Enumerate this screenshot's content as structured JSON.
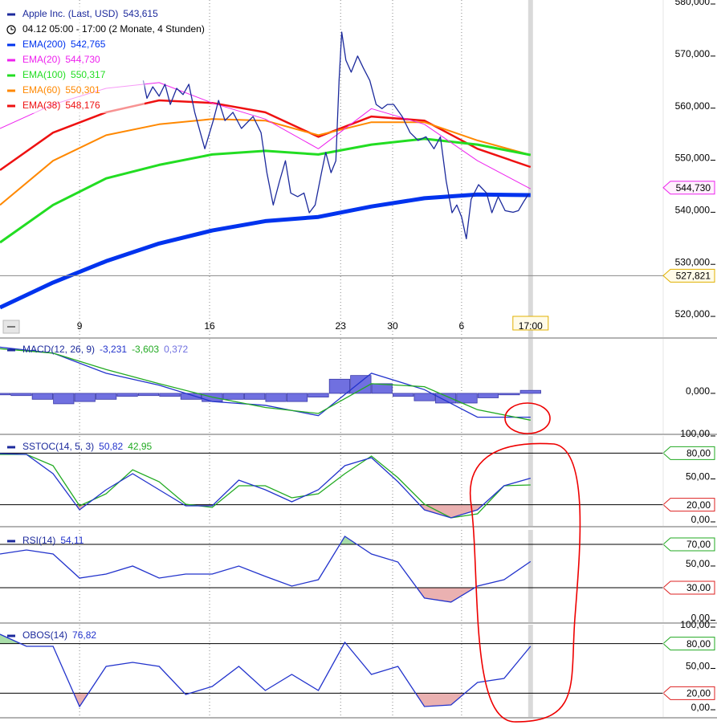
{
  "chart_data": [
    {
      "type": "line",
      "subtitle": "04.12 05:00 - 17:00 (2 Monate, 4 Stunden)",
      "xlim": [
        0,
        125
      ],
      "xticks": [
        {
          "value": 15,
          "label": "9"
        },
        {
          "value": 39.5,
          "label": "16"
        },
        {
          "value": 64.2,
          "label": "23"
        },
        {
          "value": 74,
          "label": "30"
        },
        {
          "value": 87,
          "label": "6"
        },
        {
          "value": 100,
          "label": "17:00"
        }
      ],
      "ylim": [
        516,
        580
      ],
      "yticks": [
        {
          "value": 520,
          "label": "520,000"
        },
        {
          "value": 530,
          "label": "530,000"
        },
        {
          "value": 540,
          "label": "540,000"
        },
        {
          "value": 550,
          "label": "550,000"
        },
        {
          "value": 560,
          "label": "560,000"
        },
        {
          "value": 570,
          "label": "570,000"
        },
        {
          "value": 580,
          "label": "580,000"
        }
      ],
      "x": [
        0,
        10,
        20,
        30,
        40,
        50,
        60,
        70,
        80,
        90,
        100
      ],
      "series": [
        {
          "name": "Apple Inc. (Last, USD)",
          "last": "543,615",
          "color": "#1c2a9c",
          "x": [
            27.0,
            27.7,
            28.8,
            30.0,
            31.1,
            32.1,
            33.3,
            34.5,
            35.6,
            36.7,
            38.6,
            40.2,
            41.2,
            42.4,
            43.9,
            45.5,
            47.7,
            49.2,
            50.3,
            51.5,
            52.7,
            53.8,
            54.8,
            56.1,
            57.3,
            58.3,
            59.4,
            60.6,
            61.4,
            62.4,
            63.3,
            63.9,
            64.4,
            65.2,
            66.2,
            67.4,
            68.5,
            69.7,
            70.9,
            72.0,
            73.0,
            74.2,
            75.8,
            77.3,
            78.8,
            80.3,
            81.8,
            83.0,
            84.1,
            85.2,
            86.1,
            87.0,
            87.9,
            88.8,
            90.2,
            91.7,
            92.7,
            93.9,
            95.2,
            96.7,
            97.7,
            98.8,
            99.7
          ],
          "values": [
            565.3,
            561.9,
            564.1,
            562.3,
            564.6,
            560.7,
            563.8,
            562.6,
            564.6,
            559.2,
            552.2,
            557.6,
            561.5,
            557.6,
            559.2,
            556.1,
            558.4,
            555.3,
            547.6,
            541.4,
            546.0,
            549.9,
            543.7,
            543.0,
            543.7,
            539.9,
            541.4,
            547.6,
            551.5,
            547.6,
            549.9,
            565.3,
            574.6,
            569.2,
            566.9,
            570.0,
            567.7,
            565.3,
            560.7,
            559.9,
            560.7,
            560.7,
            558.4,
            555.3,
            553.8,
            554.5,
            552.2,
            554.5,
            546.0,
            539.9,
            541.4,
            539.1,
            534.9,
            542.5,
            545.3,
            543.7,
            539.9,
            543.0,
            540.3,
            540.0,
            540.3,
            542.2,
            543.6
          ]
        },
        {
          "name": "EMA(200)",
          "last": "542,765",
          "color": "#0033ee",
          "values": [
            521.7,
            526.5,
            530.6,
            534.0,
            536.5,
            538.3,
            539.1,
            541.1,
            542.7,
            543.4,
            543.3
          ]
        },
        {
          "name": "EMA(20)",
          "last": "544,730",
          "color": "#ee22ee",
          "values": [
            556.1,
            560.7,
            563.8,
            564.9,
            561.0,
            557.9,
            552.2,
            559.9,
            556.9,
            549.9,
            544.5
          ]
        },
        {
          "name": "EMA(100)",
          "last": "550,317",
          "color": "#22dd22",
          "values": [
            534.2,
            541.4,
            546.5,
            549.1,
            551.1,
            551.8,
            551.1,
            553.0,
            554.1,
            553.0,
            551.0
          ]
        },
        {
          "name": "EMA(60)",
          "last": "550,301",
          "color": "#ff8800",
          "values": [
            541.4,
            549.9,
            554.8,
            556.9,
            557.9,
            557.6,
            554.8,
            557.3,
            557.3,
            553.8,
            551.0
          ]
        },
        {
          "name": "EMA(38)",
          "last": "548,176",
          "color": "#ee1111",
          "values": [
            548.1,
            555.3,
            559.2,
            561.5,
            561.0,
            559.2,
            554.5,
            558.4,
            557.6,
            552.2,
            548.7
          ]
        }
      ],
      "tags": [
        {
          "value": 544.73,
          "label": "544,730",
          "color": "#ee22ee"
        }
      ],
      "price_line": {
        "value": 527.821,
        "label": "527,821",
        "color": "#e0b000"
      }
    },
    {
      "type": "macd",
      "title": "MACD(12, 26, 9)",
      "color": "#1c2a9c",
      "ylim": [
        -5.4,
        7
      ],
      "yticks": [
        {
          "value": 0,
          "label": "0,000"
        }
      ],
      "x": [
        0,
        10,
        20,
        30,
        40,
        50,
        60,
        70,
        80,
        90,
        100
      ],
      "series": [
        {
          "last": "-3,231",
          "color": "#2233cc",
          "values": [
            6.2,
            5.4,
            2.7,
            1.1,
            -1.1,
            -1.6,
            -3.0,
            2.7,
            0.5,
            -3.2,
            -3.2
          ]
        },
        {
          "last": "-3,603",
          "color": "#22aa22",
          "values": [
            6.0,
            5.4,
            3.2,
            1.3,
            -0.5,
            -1.9,
            -2.7,
            1.3,
            0.9,
            -2.2,
            -3.6
          ]
        }
      ],
      "histogram": {
        "last": "0,372",
        "color": "#7070e0",
        "x": [
          0,
          4,
          8,
          12,
          16,
          20,
          24,
          28,
          32,
          36,
          40,
          44,
          48,
          52,
          56,
          60,
          64,
          68,
          72,
          76,
          80,
          84,
          88,
          92,
          96,
          100
        ],
        "values": [
          -0.2,
          -0.3,
          -0.8,
          -1.4,
          -1.1,
          -0.8,
          -0.4,
          -0.3,
          -0.4,
          -0.8,
          -1.1,
          -0.8,
          -0.8,
          -1.1,
          -1.1,
          -0.5,
          1.9,
          2.4,
          1.3,
          -0.4,
          -1.0,
          -1.3,
          -1.3,
          -0.6,
          -0.2,
          0.4
        ]
      }
    },
    {
      "type": "oscillator",
      "title": "SSTOC(14, 5, 3)",
      "color": "#1c2a9c",
      "ylim": [
        0,
        100
      ],
      "yticks": [
        {
          "value": 0,
          "label": "0,00"
        },
        {
          "value": 50,
          "label": "50,00"
        },
        {
          "value": 100,
          "label": "100,00"
        }
      ],
      "levels": [
        {
          "value": 80,
          "label": "80,00",
          "color": "#22aa22",
          "fill": "#9ad89a"
        },
        {
          "value": 20,
          "label": "20,00",
          "color": "#dd2222",
          "fill": "#e6a3a3"
        }
      ],
      "x": [
        0,
        5,
        10,
        15,
        20,
        25,
        30,
        35,
        40,
        45,
        50,
        55,
        60,
        65,
        70,
        75,
        80,
        85,
        90,
        95,
        100
      ],
      "series": [
        {
          "last": "50,82",
          "color": "#2233cc",
          "values": [
            79.4,
            78.5,
            56.1,
            14.0,
            37.4,
            56.1,
            37.4,
            18.7,
            18.7,
            48.6,
            37.4,
            23.4,
            37.4,
            65.4,
            74.8,
            46.7,
            14.0,
            4.7,
            14.0,
            42.1,
            50.8
          ]
        },
        {
          "last": "42,95",
          "color": "#22aa22",
          "values": [
            78.5,
            78.5,
            65.4,
            18.7,
            32.7,
            60.7,
            46.7,
            20.6,
            16.8,
            42.1,
            42.1,
            28.0,
            32.7,
            56.1,
            76.6,
            51.4,
            20.6,
            4.7,
            9.3,
            42.1,
            43.0
          ]
        }
      ]
    },
    {
      "type": "oscillator",
      "title": "RSI(14)",
      "color": "#1c2a9c",
      "ylim": [
        0,
        83
      ],
      "yticks": [
        {
          "value": 0,
          "label": "0,00"
        },
        {
          "value": 50,
          "label": "50,00"
        }
      ],
      "levels": [
        {
          "value": 70,
          "label": "70,00",
          "color": "#22aa22",
          "fill": "#9ad89a"
        },
        {
          "value": 30,
          "label": "30,00",
          "color": "#dd2222",
          "fill": "#e6a3a3"
        }
      ],
      "x": [
        0,
        5,
        10,
        15,
        20,
        25,
        30,
        35,
        40,
        45,
        50,
        55,
        60,
        65,
        70,
        75,
        80,
        85,
        90,
        95,
        100
      ],
      "series": [
        {
          "last": "54,11",
          "color": "#2233cc",
          "values": [
            61.1,
            64.8,
            61.1,
            38.9,
            42.6,
            50.0,
            38.9,
            42.6,
            42.6,
            50.0,
            40.4,
            31.5,
            37.4,
            77.4,
            61.1,
            53.7,
            20.4,
            16.7,
            31.5,
            37.4,
            54.1
          ]
        }
      ]
    },
    {
      "type": "oscillator",
      "title": "OBOS(14)",
      "color": "#1c2a9c",
      "ylim": [
        0,
        100
      ],
      "yticks": [
        {
          "value": 0,
          "label": "0,00"
        },
        {
          "value": 50,
          "label": "50,00"
        },
        {
          "value": 100,
          "label": "100,00"
        }
      ],
      "levels": [
        {
          "value": 80,
          "label": "80,00",
          "color": "#22aa22",
          "fill": "#9ad89a"
        },
        {
          "value": 20,
          "label": "20,00",
          "color": "#dd2222",
          "fill": "#e6a3a3"
        }
      ],
      "x": [
        0,
        5,
        10,
        15,
        20,
        25,
        30,
        35,
        40,
        45,
        50,
        55,
        60,
        65,
        70,
        75,
        80,
        85,
        90,
        95,
        100
      ],
      "series": [
        {
          "last": "76,82",
          "color": "#2233cc",
          "values": [
            91.3,
            76.7,
            76.7,
            3.9,
            52.4,
            57.3,
            52.4,
            18.4,
            28.2,
            52.4,
            23.3,
            42.7,
            23.3,
            81.6,
            42.7,
            52.4,
            3.9,
            5.8,
            33.0,
            37.9,
            76.7
          ]
        }
      ]
    }
  ]
}
